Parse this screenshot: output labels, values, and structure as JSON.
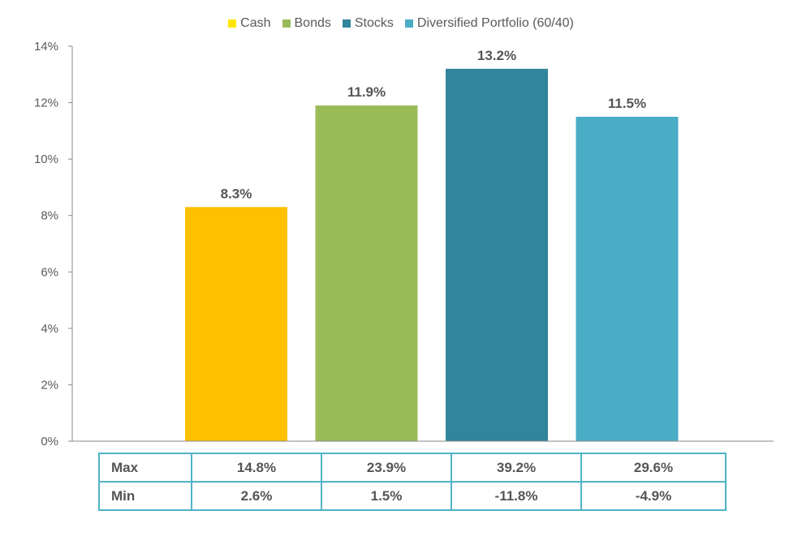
{
  "chart_data": {
    "type": "bar",
    "categories": [
      "Cash",
      "Bonds",
      "Stocks",
      "Diversified Portfolio (60/40)"
    ],
    "values": [
      8.3,
      11.9,
      13.2,
      11.5
    ],
    "value_labels": [
      "8.3%",
      "11.9%",
      "13.2%",
      "11.5%"
    ],
    "colors": [
      "#FFC000",
      "#9BBB59",
      "#31859C",
      "#4BACC6"
    ],
    "legend_colors": [
      "#FFE600",
      "#9BBB59",
      "#31859C",
      "#4BACC6"
    ],
    "legend_position": "top",
    "ylim": [
      0,
      14
    ],
    "yticks": [
      0,
      2,
      4,
      6,
      8,
      10,
      12,
      14
    ],
    "ytick_labels": [
      "0%",
      "2%",
      "4%",
      "6%",
      "8%",
      "10%",
      "12%",
      "14%"
    ],
    "grid": false,
    "title": "",
    "xlabel": "",
    "ylabel": ""
  },
  "table": {
    "rows": [
      {
        "label": "Max",
        "cells": [
          "14.8%",
          "23.9%",
          "39.2%",
          "29.6%"
        ]
      },
      {
        "label": "Min",
        "cells": [
          "2.6%",
          "1.5%",
          "-11.8%",
          "-4.9%"
        ]
      }
    ]
  }
}
